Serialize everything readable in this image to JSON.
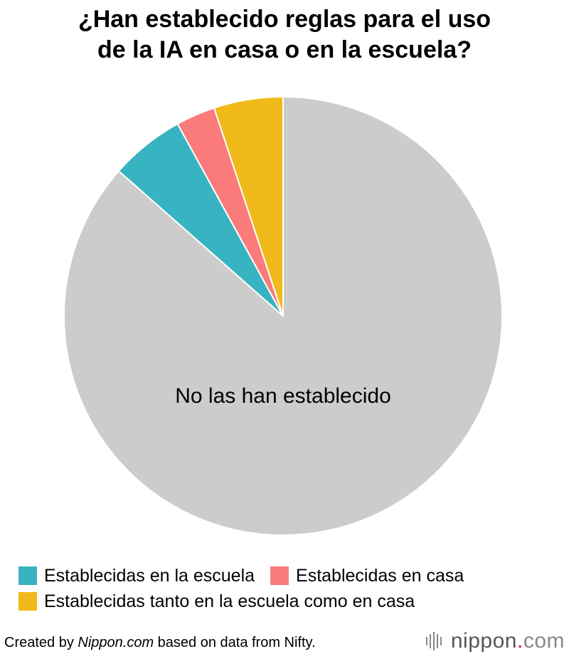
{
  "chart_data": {
    "type": "pie",
    "title_lines": [
      "¿Han establecido reglas para el uso",
      "de la IA en casa o en la escuela?"
    ],
    "slices": [
      {
        "label": "No las han establecido",
        "value": 86.5,
        "color": "#cccccc",
        "show_label": true
      },
      {
        "label": "Establecidas en la escuela",
        "value": 5.5,
        "color": "#38b3c2",
        "show_label": false
      },
      {
        "label": "Establecidas en casa",
        "value": 2.9,
        "color": "#fb7b7b",
        "show_label": false
      },
      {
        "label": "Establecidas tanto en la escuela como en casa",
        "value": 5.1,
        "color": "#f0bb1a",
        "show_label": false
      }
    ],
    "legend": [
      {
        "label": "Establecidas en la escuela",
        "color": "#38b3c2"
      },
      {
        "label": "Establecidas en casa",
        "color": "#fb7b7b"
      },
      {
        "label": "Establecidas tanto en la escuela como en casa",
        "color": "#f0bb1a"
      }
    ]
  },
  "footer": {
    "prefix": "Created by ",
    "source_site": "Nippon.com",
    "suffix": " based on data from Nifty."
  },
  "logo": {
    "name": "nippon",
    "dot": ".",
    "tld": "com"
  }
}
